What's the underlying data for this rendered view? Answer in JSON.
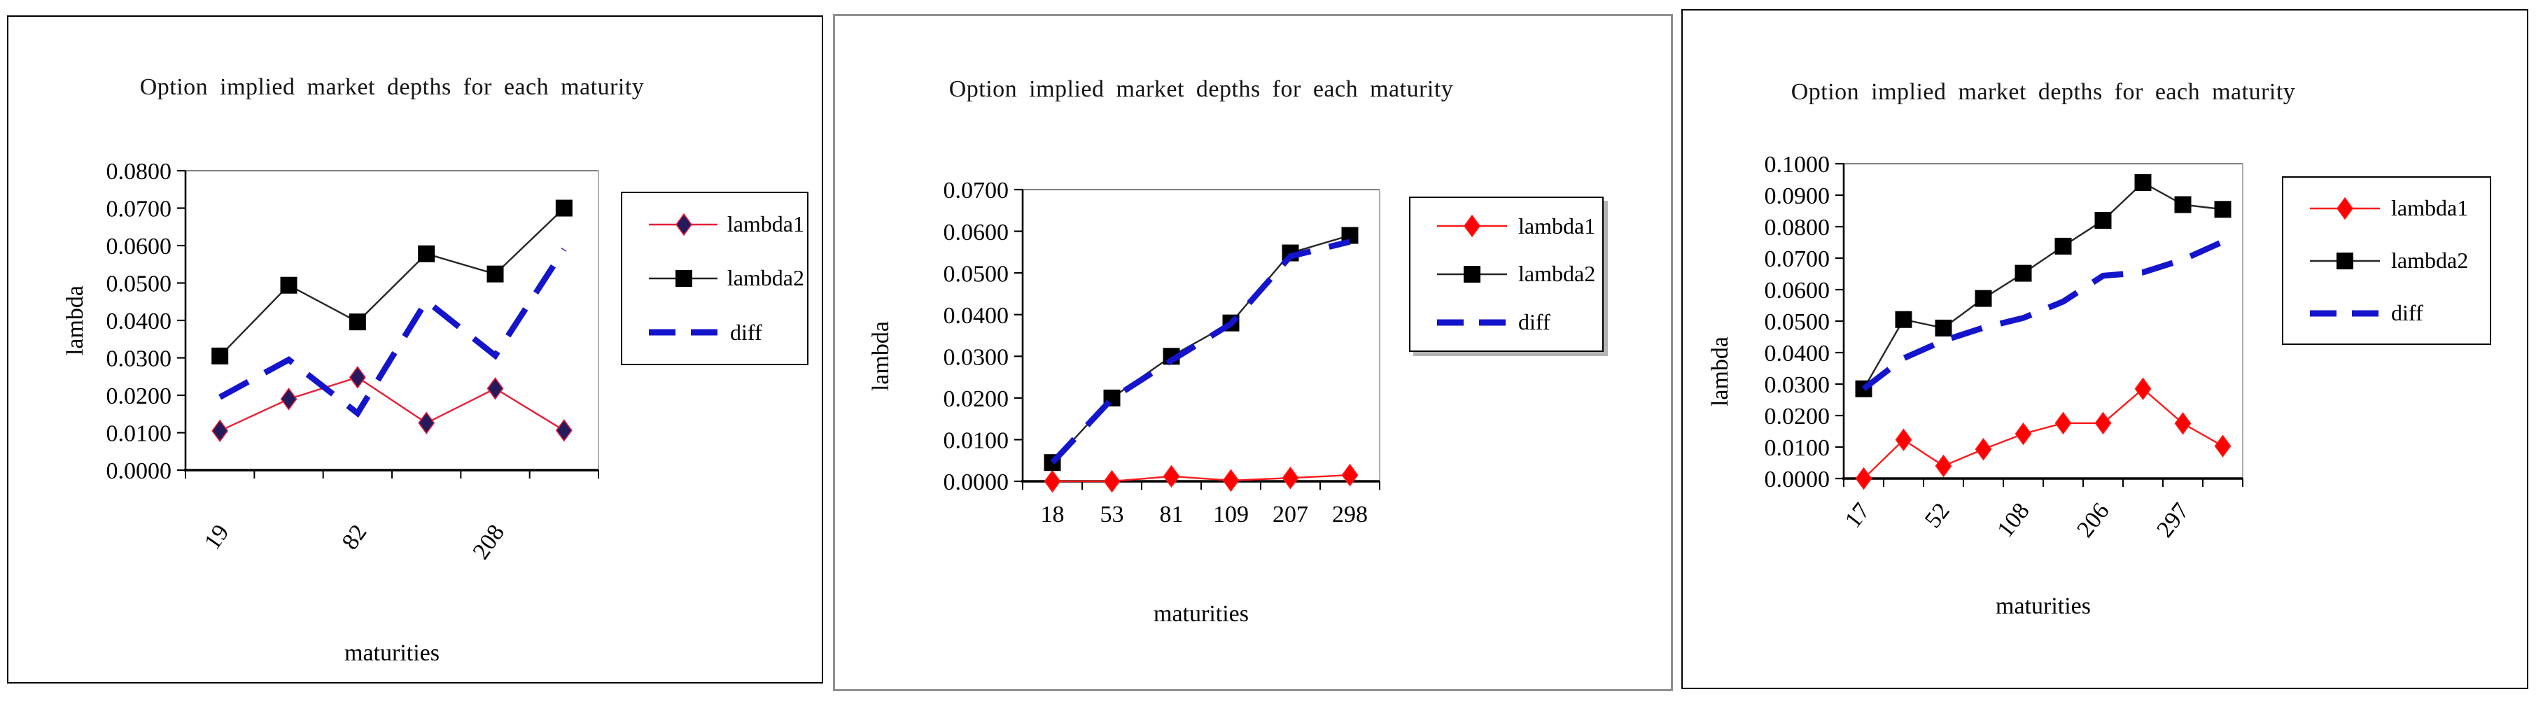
{
  "page": {
    "background": "#ffffff"
  },
  "chart_data": [
    {
      "type": "line",
      "title": "Option implied market depths for each maturity",
      "xlabel": "maturities",
      "ylabel": "lambda",
      "ylim": [
        0.0,
        0.08
      ],
      "ytick_step": 0.01,
      "ytick_decimals": 4,
      "grid": false,
      "legend_position": "right",
      "categories": [
        "19",
        "",
        "82",
        "",
        "208",
        ""
      ],
      "series": [
        {
          "name": "lambda1",
          "line_color": "#e62039",
          "marker": "diamond",
          "marker_color": "#251a5e",
          "dashed": false,
          "values": [
            0.0105,
            0.019,
            0.0248,
            0.0126,
            0.0218,
            0.0106
          ]
        },
        {
          "name": "lambda2",
          "line_color": "#262626",
          "marker": "square",
          "marker_color": "#000000",
          "dashed": false,
          "values": [
            0.0305,
            0.0494,
            0.0396,
            0.0578,
            0.0524,
            0.07
          ]
        },
        {
          "name": "diff",
          "line_color": "#1414cc",
          "marker": "none",
          "dashed": true,
          "values": [
            0.0195,
            0.0295,
            0.0152,
            0.0452,
            0.0306,
            0.059
          ]
        }
      ]
    },
    {
      "type": "line",
      "title": "Option implied market depths for each maturity",
      "xlabel": "maturities",
      "ylabel": "lambda",
      "ylim": [
        0.0,
        0.07
      ],
      "ytick_step": 0.01,
      "ytick_decimals": 4,
      "grid": false,
      "legend_position": "right",
      "categories": [
        "18",
        "53",
        "81",
        "109",
        "207",
        "298"
      ],
      "series": [
        {
          "name": "lambda1",
          "line_color": "#ff1a1a",
          "marker": "diamond",
          "marker_color": "#ff0000",
          "dashed": false,
          "values": [
            0.0,
            0.0,
            0.0012,
            0.0002,
            0.0008,
            0.0015
          ]
        },
        {
          "name": "lambda2",
          "line_color": "#262626",
          "marker": "square",
          "marker_color": "#000000",
          "dashed": false,
          "values": [
            0.0045,
            0.02,
            0.03,
            0.038,
            0.0548,
            0.059
          ]
        },
        {
          "name": "diff",
          "line_color": "#1414cc",
          "marker": "none",
          "dashed": true,
          "values": [
            0.0045,
            0.0198,
            0.029,
            0.0378,
            0.054,
            0.0575
          ]
        }
      ]
    },
    {
      "type": "line",
      "title": "Option implied market depths for each maturity",
      "xlabel": "maturities",
      "ylabel": "lambda",
      "ylim": [
        0.0,
        0.1
      ],
      "ytick_step": 0.01,
      "ytick_decimals": 4,
      "grid": false,
      "legend_position": "right",
      "categories": [
        "17",
        "",
        "52",
        "",
        "108",
        "",
        "206",
        "",
        "297",
        ""
      ],
      "series": [
        {
          "name": "lambda1",
          "line_color": "#ff1a1a",
          "marker": "diamond",
          "marker_color": "#ff0000",
          "dashed": false,
          "values": [
            0.0,
            0.0123,
            0.004,
            0.0093,
            0.0142,
            0.0176,
            0.0176,
            0.0285,
            0.0175,
            0.0103
          ]
        },
        {
          "name": "lambda2",
          "line_color": "#262626",
          "marker": "square",
          "marker_color": "#000000",
          "dashed": false,
          "values": [
            0.0285,
            0.0505,
            0.0478,
            0.0572,
            0.0652,
            0.0738,
            0.082,
            0.094,
            0.087,
            0.0855
          ]
        },
        {
          "name": "diff",
          "line_color": "#1414cc",
          "marker": "none",
          "dashed": true,
          "values": [
            0.0285,
            0.0382,
            0.0438,
            0.0479,
            0.051,
            0.0562,
            0.0644,
            0.0655,
            0.0695,
            0.0752
          ]
        }
      ]
    }
  ]
}
